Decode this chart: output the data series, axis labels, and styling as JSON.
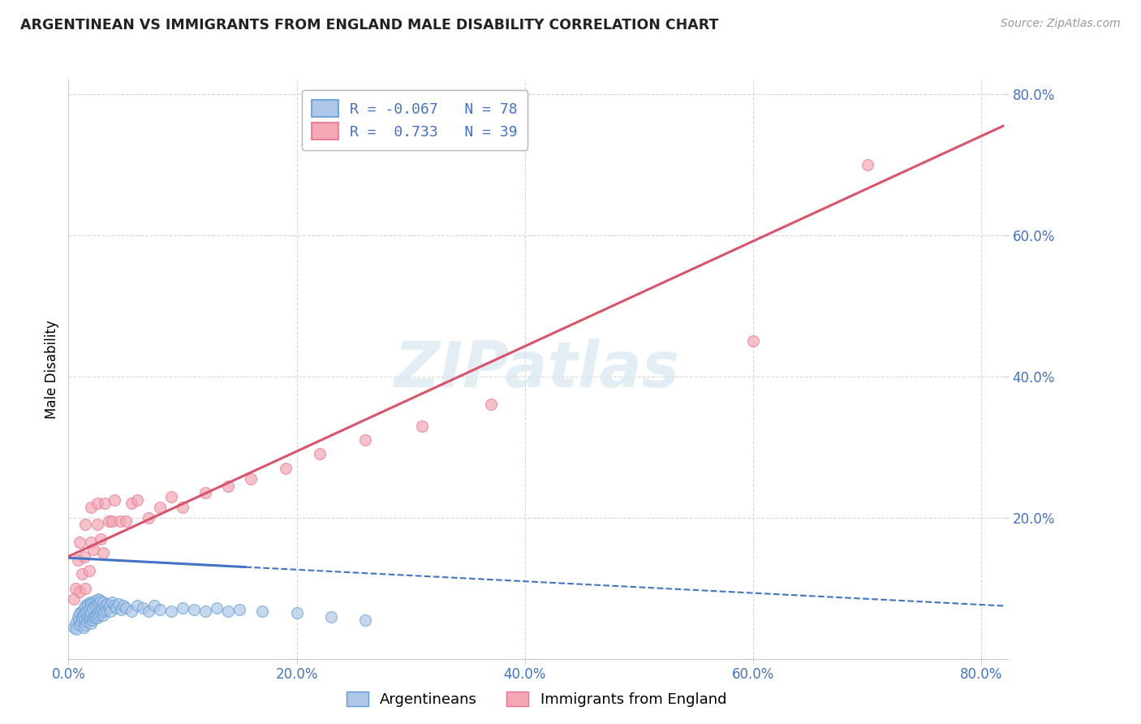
{
  "title": "ARGENTINEAN VS IMMIGRANTS FROM ENGLAND MALE DISABILITY CORRELATION CHART",
  "source": "Source: ZipAtlas.com",
  "ylabel": "Male Disability",
  "xlim": [
    0.0,
    0.82
  ],
  "ylim": [
    0.0,
    0.82
  ],
  "xticks": [
    0.0,
    0.2,
    0.4,
    0.6,
    0.8
  ],
  "yticks": [
    0.0,
    0.2,
    0.4,
    0.6,
    0.8
  ],
  "xticklabels": [
    "0.0%",
    "20.0%",
    "40.0%",
    "60.0%",
    "80.0%"
  ],
  "yticklabels": [
    "",
    "20.0%",
    "40.0%",
    "60.0%",
    "80.0%"
  ],
  "blue_face_color": "#aec6e8",
  "pink_face_color": "#f4a7b4",
  "blue_edge_color": "#5b9bd5",
  "pink_edge_color": "#e87090",
  "blue_line_color": "#4472c4",
  "pink_line_color": "#d9546a",
  "tick_color": "#4472c4",
  "grid_color": "#cccccc",
  "watermark": "ZIPatlas",
  "legend_text_color": "#4472c4",
  "bottom_legend_blue": "Argentineans",
  "bottom_legend_pink": "Immigrants from England",
  "blue_scatter_x": [
    0.005,
    0.006,
    0.007,
    0.008,
    0.009,
    0.01,
    0.01,
    0.011,
    0.012,
    0.012,
    0.013,
    0.013,
    0.014,
    0.014,
    0.015,
    0.015,
    0.015,
    0.016,
    0.016,
    0.017,
    0.017,
    0.018,
    0.018,
    0.019,
    0.019,
    0.02,
    0.02,
    0.02,
    0.021,
    0.021,
    0.022,
    0.022,
    0.023,
    0.023,
    0.024,
    0.024,
    0.025,
    0.025,
    0.026,
    0.026,
    0.027,
    0.027,
    0.028,
    0.028,
    0.029,
    0.03,
    0.03,
    0.031,
    0.032,
    0.033,
    0.034,
    0.035,
    0.036,
    0.037,
    0.038,
    0.04,
    0.042,
    0.044,
    0.046,
    0.048,
    0.05,
    0.055,
    0.06,
    0.065,
    0.07,
    0.075,
    0.08,
    0.09,
    0.1,
    0.11,
    0.12,
    0.13,
    0.14,
    0.15,
    0.17,
    0.2,
    0.23,
    0.26
  ],
  "blue_scatter_y": [
    0.045,
    0.05,
    0.042,
    0.06,
    0.055,
    0.048,
    0.065,
    0.052,
    0.058,
    0.068,
    0.045,
    0.062,
    0.055,
    0.072,
    0.048,
    0.065,
    0.075,
    0.052,
    0.068,
    0.058,
    0.078,
    0.055,
    0.07,
    0.06,
    0.08,
    0.05,
    0.065,
    0.078,
    0.055,
    0.072,
    0.06,
    0.08,
    0.058,
    0.075,
    0.062,
    0.082,
    0.058,
    0.078,
    0.065,
    0.085,
    0.062,
    0.08,
    0.065,
    0.082,
    0.07,
    0.062,
    0.08,
    0.068,
    0.075,
    0.07,
    0.078,
    0.072,
    0.075,
    0.068,
    0.08,
    0.075,
    0.072,
    0.078,
    0.07,
    0.075,
    0.072,
    0.068,
    0.075,
    0.072,
    0.068,
    0.075,
    0.07,
    0.068,
    0.072,
    0.07,
    0.068,
    0.072,
    0.068,
    0.07,
    0.068,
    0.065,
    0.06,
    0.055
  ],
  "pink_scatter_x": [
    0.005,
    0.006,
    0.008,
    0.01,
    0.01,
    0.012,
    0.014,
    0.015,
    0.015,
    0.018,
    0.02,
    0.02,
    0.022,
    0.025,
    0.025,
    0.028,
    0.03,
    0.032,
    0.035,
    0.038,
    0.04,
    0.045,
    0.05,
    0.055,
    0.06,
    0.07,
    0.08,
    0.09,
    0.1,
    0.12,
    0.14,
    0.16,
    0.19,
    0.22,
    0.26,
    0.31,
    0.37,
    0.6,
    0.7
  ],
  "pink_scatter_y": [
    0.085,
    0.1,
    0.14,
    0.095,
    0.165,
    0.12,
    0.145,
    0.1,
    0.19,
    0.125,
    0.165,
    0.215,
    0.155,
    0.19,
    0.22,
    0.17,
    0.15,
    0.22,
    0.195,
    0.195,
    0.225,
    0.195,
    0.195,
    0.22,
    0.225,
    0.2,
    0.215,
    0.23,
    0.215,
    0.235,
    0.245,
    0.255,
    0.27,
    0.29,
    0.31,
    0.33,
    0.36,
    0.45,
    0.7
  ],
  "blue_line_start_x": 0.0,
  "blue_line_start_y": 0.143,
  "blue_line_solid_end_x": 0.155,
  "blue_line_solid_end_y": 0.13,
  "blue_line_dash_end_x": 0.82,
  "blue_line_dash_end_y": 0.075,
  "pink_line_start_x": 0.0,
  "pink_line_start_y": 0.145,
  "pink_line_end_x": 0.82,
  "pink_line_end_y": 0.755
}
